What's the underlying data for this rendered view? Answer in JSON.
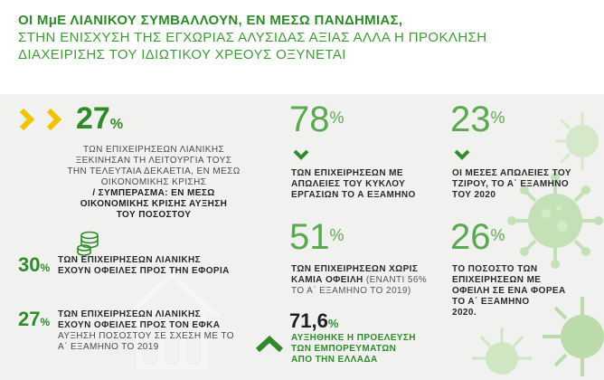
{
  "header": {
    "line1": "ΟΙ ΜμΕ ΛΙΑΝΙΚΟΥ ΣΥΜΒΑΛΛΟΥΝ, ΕΝ ΜΕΣΩ ΠΑΝΔΗΜΙΑΣ,",
    "line2": "ΣΤΗΝ  ΕΝΙΣΧΥΣΗ ΤΗΣ ΕΓΧΩΡΙΑΣ ΑΛΥΣΙΔΑΣ ΑΞΙΑΣ ΑΛΛΑ Η ΠΡΟΚΛΗΣΗ",
    "line3": "ΔΙΑΧΕΙΡΙΣΗΣ ΤΟΥ ΙΔΙΩΤΙΚΟΥ ΧΡΕΟΥΣ ΟΞΥΝΕΤΑΙ"
  },
  "colors": {
    "dark_green": "#2f8a2a",
    "light_green": "#5aa84f",
    "chevron_yellow": "#f2c200",
    "background": "#f1f2f0"
  },
  "stat_left_top": {
    "value": "27",
    "unit": "%",
    "line1": "ΤΩΝ ΕΠΙΧΕΙΡΗΣΕΩΝ ΛΙΑΝΙΚΗΣ",
    "line2": "ΞΕΚΙΝΗΣΑΝ ΤΗ ΛΕΙΤΟΥΡΓΙΑ ΤΟΥΣ",
    "line3": "ΤΗΝ ΤΕΛΕΥΤΑΙΑ ΔΕΚΑΕΤΙΑ, ΕΝ ΜΕΣΩ",
    "line4": "ΟΙΚΟΝΟΜΙΚΗΣ ΚΡΙΣΗΣ",
    "line5": "/ ΣΥΜΠΕΡΑΣΜΑ: ΕΝ ΜΕΣΩ",
    "line6": "ΟΙΚΟΝΟΜΙΚΗΣ ΚΡΙΣΗΣ ΑΥΞΗΣΗ",
    "line7": "ΤΟΥ ΠΟΣΟΣΤΟΥ",
    "icon": "double-chevron-right-icon"
  },
  "stat_left_mid": {
    "value": "30",
    "unit": "%",
    "line1": "ΤΩΝ ΕΠΙΧΕΙΡΗΣΕΩΝ ΛΙΑΝΙΚΗΣ",
    "line2": "ΕΧΟΥΝ ΟΦΕΙΛΕΣ ΠΡΟΣ ΤΗΝ ΕΦΟΡΙΑ",
    "icon": "coins-icon"
  },
  "stat_left_bottom": {
    "value": "27",
    "unit": "%",
    "line1": "ΤΩΝ ΕΠΙΧΕΙΡΗΣΕΩΝ ΛΙΑΝΙΚΗΣ",
    "line2": "ΕΧΟΥΝ ΟΦΕΙΛΕΣ  ΠΡΟΣ ΤΟΝ ΕΦΚΑ",
    "line3": "ΑΥΞΗΣΗ ΠΟΣΟΣΤΟΥ ΣΕ ΣΧΕΣΗ ΜΕ ΤΟ",
    "line4": "Α΄ ΕΞΑΜΗΝΟ ΤΟ 2019"
  },
  "stat_mid_top": {
    "value": "78",
    "unit": "%",
    "line1": "ΤΩΝ ΕΠΙΧΕΙΡΗΣΕΩΝ ΜΕ",
    "line2": "ΑΠΩΛΕΙΕΣ ΤΟΥ ΚΥΚΛΟΥ",
    "line3": "ΕΡΓΑΣΙΩΝ ΤΟ Α ΕΞΑΜΗΝΟ",
    "icon": "chevron-down-icon"
  },
  "stat_mid_mid": {
    "value": "51",
    "unit": "%",
    "line1": "ΤΩΝ ΕΠΙΧΕΙΡΗΣΕΩΝ ΧΩΡΙΣ",
    "line2a": "ΚΑΜΙΑ ΟΦΕΙΛΗ",
    "line2b": "(ΕΝΑΝΤΙ 56%",
    "line3": "ΤΟ Α΄ ΕΞΑΜΗΝΟ ΤΟ 2019)"
  },
  "stat_mid_bottom": {
    "value": "71,6",
    "unit": "%",
    "line1": "ΑΥΞΗΘΗΚΕ Η ΠΡΟΕΛΕΥΣΗ",
    "line2": "ΤΩΝ ΕΜΠΟΡΕΥΜΑΤΩΝ",
    "line3": "ΑΠΟ ΤΗΝ ΕΛΛΑΔΑ",
    "icon": "chevron-up-icon"
  },
  "stat_right_top": {
    "value": "23",
    "unit": "%",
    "line1": "ΟΙ ΜΕΣΕΣ ΑΠΩΛΕΙΕΣ ΤΟΥ",
    "line2": "ΤΖΙΡΟΥ, ΤΟ Α΄ ΕΞΑΜΗΝΟ",
    "line3": "ΤΟΥ 2020",
    "icon": "chevron-down-icon"
  },
  "stat_right_mid": {
    "value": "26",
    "unit": "%",
    "line1": "ΤΟ ΠΟΣΟΣΤΟ ΤΩΝ",
    "line2": "ΕΠΙΧΕΙΡΗΣΕΩΝ ΜΕ",
    "line3": "ΟΦΕΙΛΗ ΣΕ ΕΝΑ ΦΟΡΕΑ",
    "line4": "ΤΟ Α΄ ΕΞΑΜΗΝΟ",
    "line5": "2020."
  }
}
